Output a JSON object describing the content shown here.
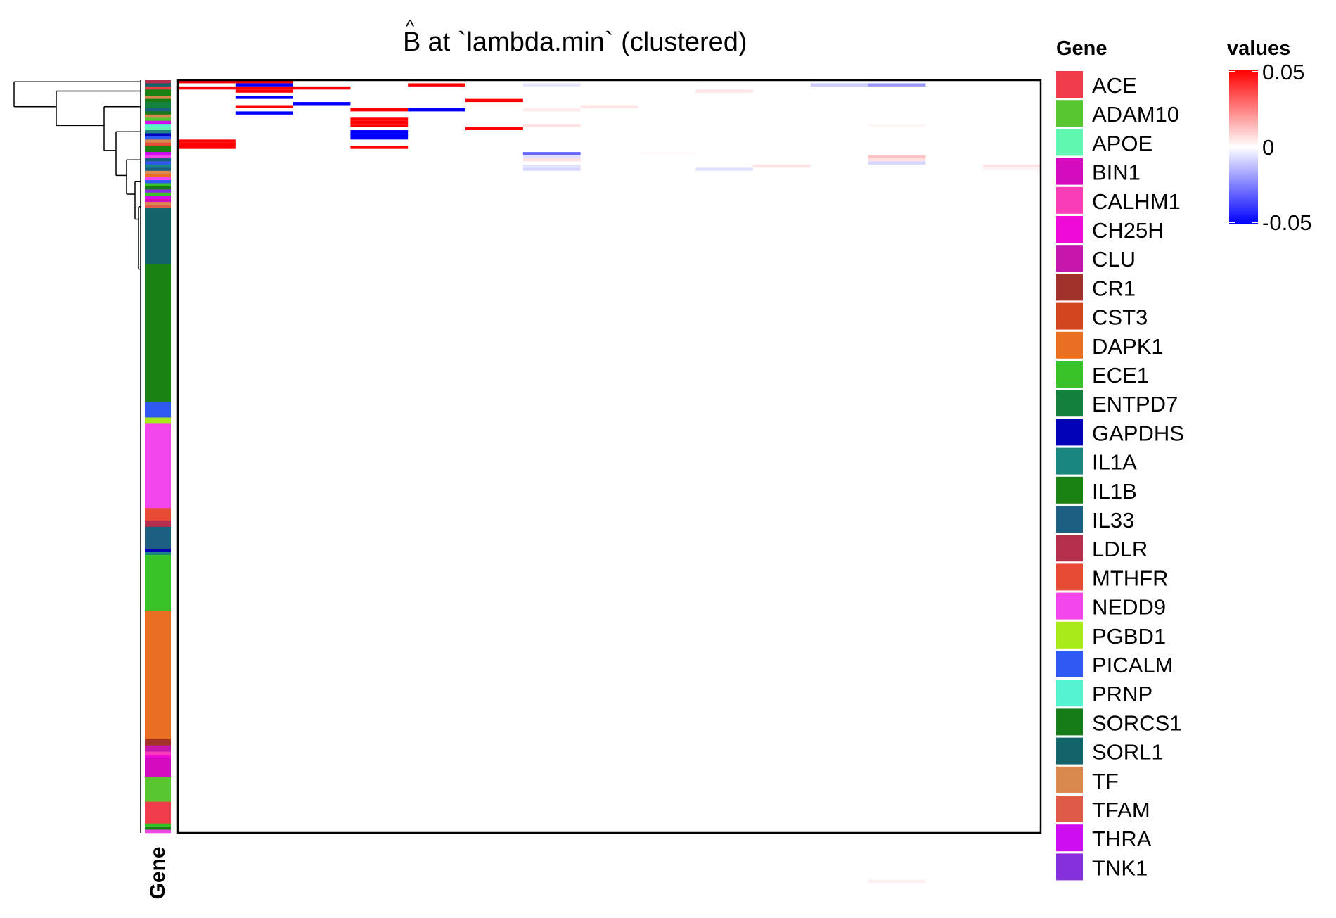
{
  "chart_data": {
    "type": "heatmap",
    "title_symbol": "B",
    "title_accent": "^",
    "title_rest": " at `lambda.min` (clustered)",
    "row_annotation_label": "Gene",
    "legend_gene_title": "Gene",
    "legend_values_title": "values",
    "value_range": [
      -0.05,
      0.05
    ],
    "colorbar_ticks": [
      {
        "value": 0.05,
        "label": "0.05"
      },
      {
        "value": 0,
        "label": "0"
      },
      {
        "value": -0.05,
        "label": "-0.05"
      }
    ],
    "colors": {
      "low": "#0000ff",
      "mid": "#ffffff",
      "high": "#ff0000"
    },
    "n_columns": 15,
    "genes": [
      {
        "name": "ACE",
        "color": "#ef3b4a"
      },
      {
        "name": "ADAM10",
        "color": "#59c52f"
      },
      {
        "name": "APOE",
        "color": "#5ff7b2"
      },
      {
        "name": "BIN1",
        "color": "#d40bbf"
      },
      {
        "name": "CALHM1",
        "color": "#f93db8"
      },
      {
        "name": "CH25H",
        "color": "#f00ad8"
      },
      {
        "name": "CLU",
        "color": "#c516ad"
      },
      {
        "name": "CR1",
        "color": "#a0322b"
      },
      {
        "name": "CST3",
        "color": "#d2451f"
      },
      {
        "name": "DAPK1",
        "color": "#e96f22"
      },
      {
        "name": "ECE1",
        "color": "#36c228"
      },
      {
        "name": "ENTPD7",
        "color": "#14803d"
      },
      {
        "name": "GAPDHS",
        "color": "#0202b8"
      },
      {
        "name": "IL1A",
        "color": "#1b8580"
      },
      {
        "name": "IL1B",
        "color": "#1a8212"
      },
      {
        "name": "IL33",
        "color": "#1d5e83"
      },
      {
        "name": "LDLR",
        "color": "#b52e4c"
      },
      {
        "name": "MTHFR",
        "color": "#e84b35"
      },
      {
        "name": "NEDD9",
        "color": "#f346ea"
      },
      {
        "name": "PGBD1",
        "color": "#a8ea17"
      },
      {
        "name": "PICALM",
        "color": "#2f59f2"
      },
      {
        "name": "PRNP",
        "color": "#55f3cf"
      },
      {
        "name": "SORCS1",
        "color": "#177c17"
      },
      {
        "name": "SORL1",
        "color": "#12646a"
      },
      {
        "name": "TF",
        "color": "#da8750"
      },
      {
        "name": "TFAM",
        "color": "#df5b48"
      },
      {
        "name": "THRA",
        "color": "#cf0df1"
      },
      {
        "name": "TNK1",
        "color": "#8630dd"
      }
    ],
    "row_annotation": [
      {
        "gene": "LDLR",
        "rows": 1
      },
      {
        "gene": "SORL1",
        "rows": 1
      },
      {
        "gene": "ACE",
        "rows": 1
      },
      {
        "gene": "IL1B",
        "rows": 2
      },
      {
        "gene": "TF",
        "rows": 1
      },
      {
        "gene": "SORCS1",
        "rows": 1
      },
      {
        "gene": "ENTPD7",
        "rows": 2
      },
      {
        "gene": "IL33",
        "rows": 1
      },
      {
        "gene": "SORCS1",
        "rows": 1
      },
      {
        "gene": "TF",
        "rows": 1
      },
      {
        "gene": "ADAM10",
        "rows": 1
      },
      {
        "gene": "THRA",
        "rows": 1
      },
      {
        "gene": "PRNP",
        "rows": 1
      },
      {
        "gene": "APOE",
        "rows": 1
      },
      {
        "gene": "IL1A",
        "rows": 1
      },
      {
        "gene": "GAPDHS",
        "rows": 1
      },
      {
        "gene": "PICALM",
        "rows": 1
      },
      {
        "gene": "TF",
        "rows": 1
      },
      {
        "gene": "MTHFR",
        "rows": 1
      },
      {
        "gene": "IL1B",
        "rows": 2
      },
      {
        "gene": "THRA",
        "rows": 1
      },
      {
        "gene": "NEDD9",
        "rows": 1
      },
      {
        "gene": "IL33",
        "rows": 1
      },
      {
        "gene": "PICALM",
        "rows": 1
      },
      {
        "gene": "IL1A",
        "rows": 1
      },
      {
        "gene": "IL33",
        "rows": 1
      },
      {
        "gene": "TF",
        "rows": 1
      },
      {
        "gene": "DAPK1",
        "rows": 1
      },
      {
        "gene": "NEDD9",
        "rows": 1
      },
      {
        "gene": "PICALM",
        "rows": 1
      },
      {
        "gene": "ECE1",
        "rows": 1
      },
      {
        "gene": "SORCS1",
        "rows": 1
      },
      {
        "gene": "TNK1",
        "rows": 1
      },
      {
        "gene": "ECE1",
        "rows": 1
      },
      {
        "gene": "THRA",
        "rows": 1
      },
      {
        "gene": "BIN1",
        "rows": 1
      },
      {
        "gene": "TF",
        "rows": 1
      },
      {
        "gene": "TFAM",
        "rows": 1
      },
      {
        "gene": "SORL1",
        "rows": 18
      },
      {
        "gene": "IL1B",
        "rows": 44
      },
      {
        "gene": "PICALM",
        "rows": 5
      },
      {
        "gene": "PGBD1",
        "rows": 2
      },
      {
        "gene": "NEDD9",
        "rows": 27
      },
      {
        "gene": "MTHFR",
        "rows": 4
      },
      {
        "gene": "LDLR",
        "rows": 2
      },
      {
        "gene": "IL33",
        "rows": 7
      },
      {
        "gene": "GAPDHS",
        "rows": 1
      },
      {
        "gene": "IL1A",
        "rows": 1
      },
      {
        "gene": "ECE1",
        "rows": 18
      },
      {
        "gene": "DAPK1",
        "rows": 41
      },
      {
        "gene": "CR1",
        "rows": 2
      },
      {
        "gene": "CLU",
        "rows": 2
      },
      {
        "gene": "CALHM1",
        "rows": 1
      },
      {
        "gene": "CH25H",
        "rows": 1
      },
      {
        "gene": "BIN1",
        "rows": 6
      },
      {
        "gene": "ADAM10",
        "rows": 8
      },
      {
        "gene": "ACE",
        "rows": 7
      },
      {
        "gene": "ECE1",
        "rows": 1
      },
      {
        "gene": "IL1B",
        "rows": 1
      },
      {
        "gene": "NEDD9",
        "rows": 1
      }
    ],
    "cells": [
      {
        "row": 0,
        "col": 0,
        "value": 0.05
      },
      {
        "row": 0,
        "col": 1,
        "value": 0.05
      },
      {
        "row": 1,
        "col": 1,
        "value": -0.05
      },
      {
        "row": 1,
        "col": 4,
        "value": 0.05
      },
      {
        "row": 1,
        "col": 6,
        "value": -0.005
      },
      {
        "row": 1,
        "col": 11,
        "value": -0.01
      },
      {
        "row": 1,
        "col": 12,
        "value": -0.02
      },
      {
        "row": 2,
        "col": 0,
        "value": 0.05
      },
      {
        "row": 2,
        "col": 1,
        "value": 0.05
      },
      {
        "row": 2,
        "col": 2,
        "value": 0.05
      },
      {
        "row": 3,
        "col": 1,
        "value": 0.05
      },
      {
        "row": 3,
        "col": 9,
        "value": 0.005
      },
      {
        "row": 5,
        "col": 1,
        "value": -0.05
      },
      {
        "row": 6,
        "col": 5,
        "value": 0.05
      },
      {
        "row": 7,
        "col": 2,
        "value": -0.05
      },
      {
        "row": 8,
        "col": 1,
        "value": 0.05
      },
      {
        "row": 8,
        "col": 7,
        "value": 0.005
      },
      {
        "row": 9,
        "col": 3,
        "value": 0.05
      },
      {
        "row": 9,
        "col": 4,
        "value": -0.05
      },
      {
        "row": 9,
        "col": 6,
        "value": 0.004
      },
      {
        "row": 10,
        "col": 1,
        "value": -0.05
      },
      {
        "row": 12,
        "col": 3,
        "value": 0.05
      },
      {
        "row": 13,
        "col": 3,
        "value": 0.05
      },
      {
        "row": 14,
        "col": 3,
        "value": 0.05
      },
      {
        "row": 14,
        "col": 6,
        "value": 0.006
      },
      {
        "row": 14,
        "col": 12,
        "value": 0.002
      },
      {
        "row": 15,
        "col": 5,
        "value": 0.05
      },
      {
        "row": 16,
        "col": 3,
        "value": -0.05
      },
      {
        "row": 17,
        "col": 3,
        "value": -0.05
      },
      {
        "row": 18,
        "col": 3,
        "value": -0.05
      },
      {
        "row": 19,
        "col": 0,
        "value": 0.05
      },
      {
        "row": 20,
        "col": 0,
        "value": 0.05
      },
      {
        "row": 21,
        "col": 0,
        "value": 0.05
      },
      {
        "row": 21,
        "col": 3,
        "value": 0.05
      },
      {
        "row": 23,
        "col": 6,
        "value": -0.03
      },
      {
        "row": 23,
        "col": 8,
        "value": 0.001
      },
      {
        "row": 24,
        "col": 6,
        "value": -0.006
      },
      {
        "row": 24,
        "col": 12,
        "value": 0.012
      },
      {
        "row": 25,
        "col": 6,
        "value": 0.006
      },
      {
        "row": 25,
        "col": 12,
        "value": 0.006
      },
      {
        "row": 26,
        "col": 12,
        "value": -0.008
      },
      {
        "row": 27,
        "col": 6,
        "value": -0.006
      },
      {
        "row": 27,
        "col": 10,
        "value": 0.006
      },
      {
        "row": 27,
        "col": 14,
        "value": 0.006
      },
      {
        "row": 28,
        "col": 6,
        "value": -0.008
      },
      {
        "row": 28,
        "col": 9,
        "value": -0.006
      },
      {
        "row": 28,
        "col": 14,
        "value": 0.002
      },
      {
        "row": 256,
        "col": 12,
        "value": 0.003
      }
    ]
  }
}
